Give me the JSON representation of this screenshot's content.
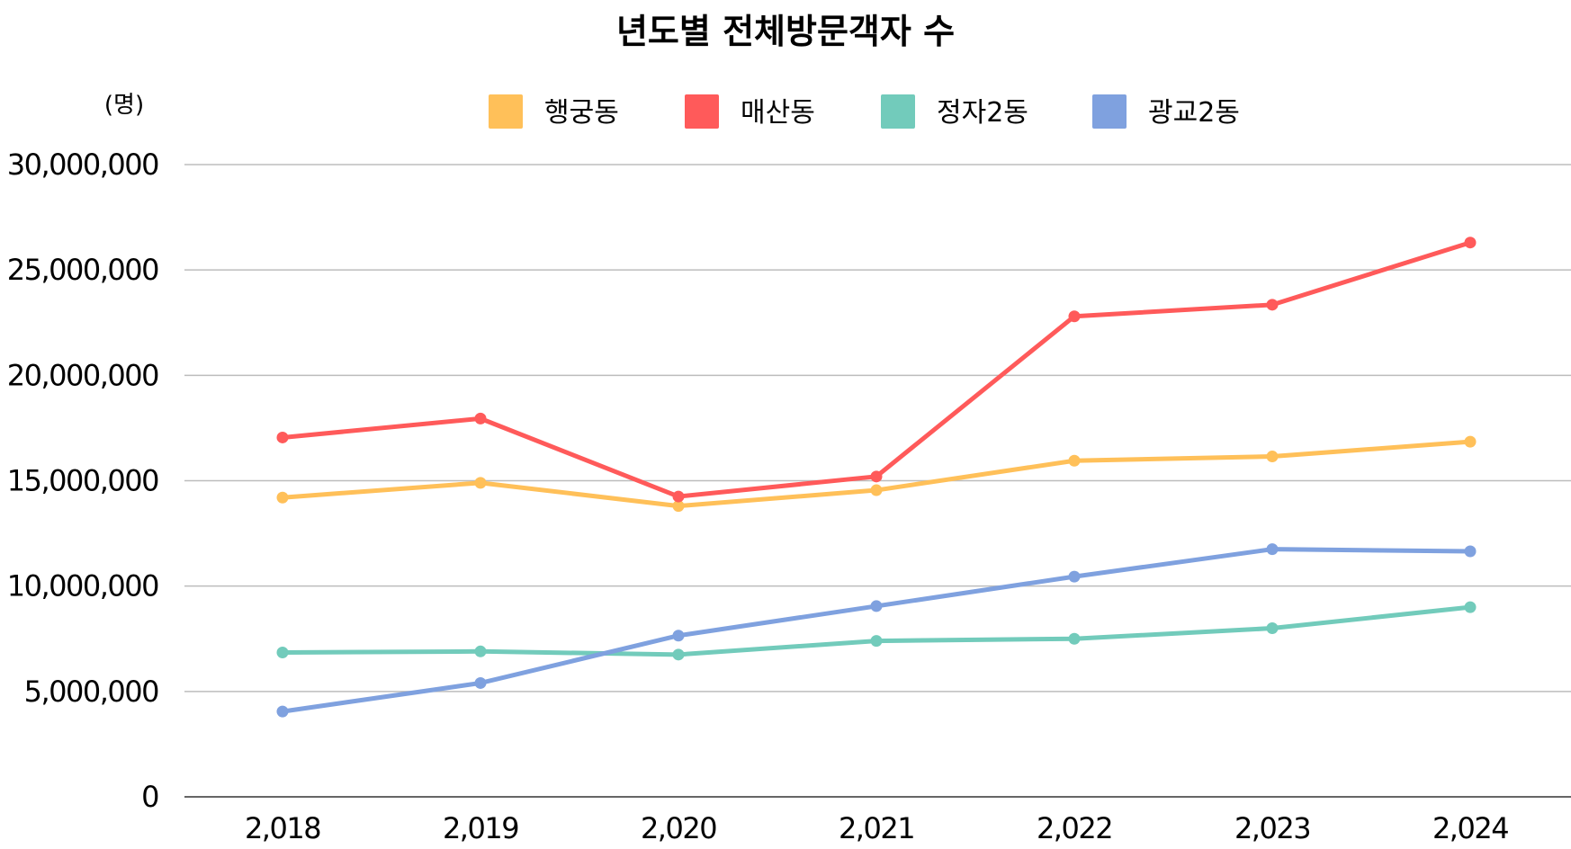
{
  "chart_data": {
    "type": "line",
    "title": "년도별 전체방문객자 수",
    "ylabel": "(명)",
    "xlabel": "",
    "categories": [
      "2,018",
      "2,019",
      "2,020",
      "2,021",
      "2,022",
      "2,023",
      "2,024"
    ],
    "ylim": [
      0,
      30000000
    ],
    "yticks": [
      0,
      5000000,
      10000000,
      15000000,
      20000000,
      25000000,
      30000000
    ],
    "ytick_labels": [
      "0",
      "5,000,000",
      "10,000,000",
      "15,000,000",
      "20,000,000",
      "25,000,000",
      "30,000,000"
    ],
    "grid": true,
    "legend_position": "top",
    "series": [
      {
        "name": "행궁동",
        "color": "#FFC059",
        "values": [
          14200000,
          14900000,
          13800000,
          14550000,
          15950000,
          16150000,
          16850000
        ]
      },
      {
        "name": "매산동",
        "color": "#FF5A5A",
        "values": [
          17050000,
          17950000,
          14250000,
          15200000,
          22800000,
          23350000,
          26300000
        ]
      },
      {
        "name": "정자2동",
        "color": "#72CBBB",
        "values": [
          6850000,
          6900000,
          6750000,
          7400000,
          7500000,
          8000000,
          9000000
        ]
      },
      {
        "name": "광교2동",
        "color": "#7FA1DF",
        "values": [
          4050000,
          5400000,
          7650000,
          9050000,
          10450000,
          11750000,
          11650000
        ]
      }
    ]
  }
}
